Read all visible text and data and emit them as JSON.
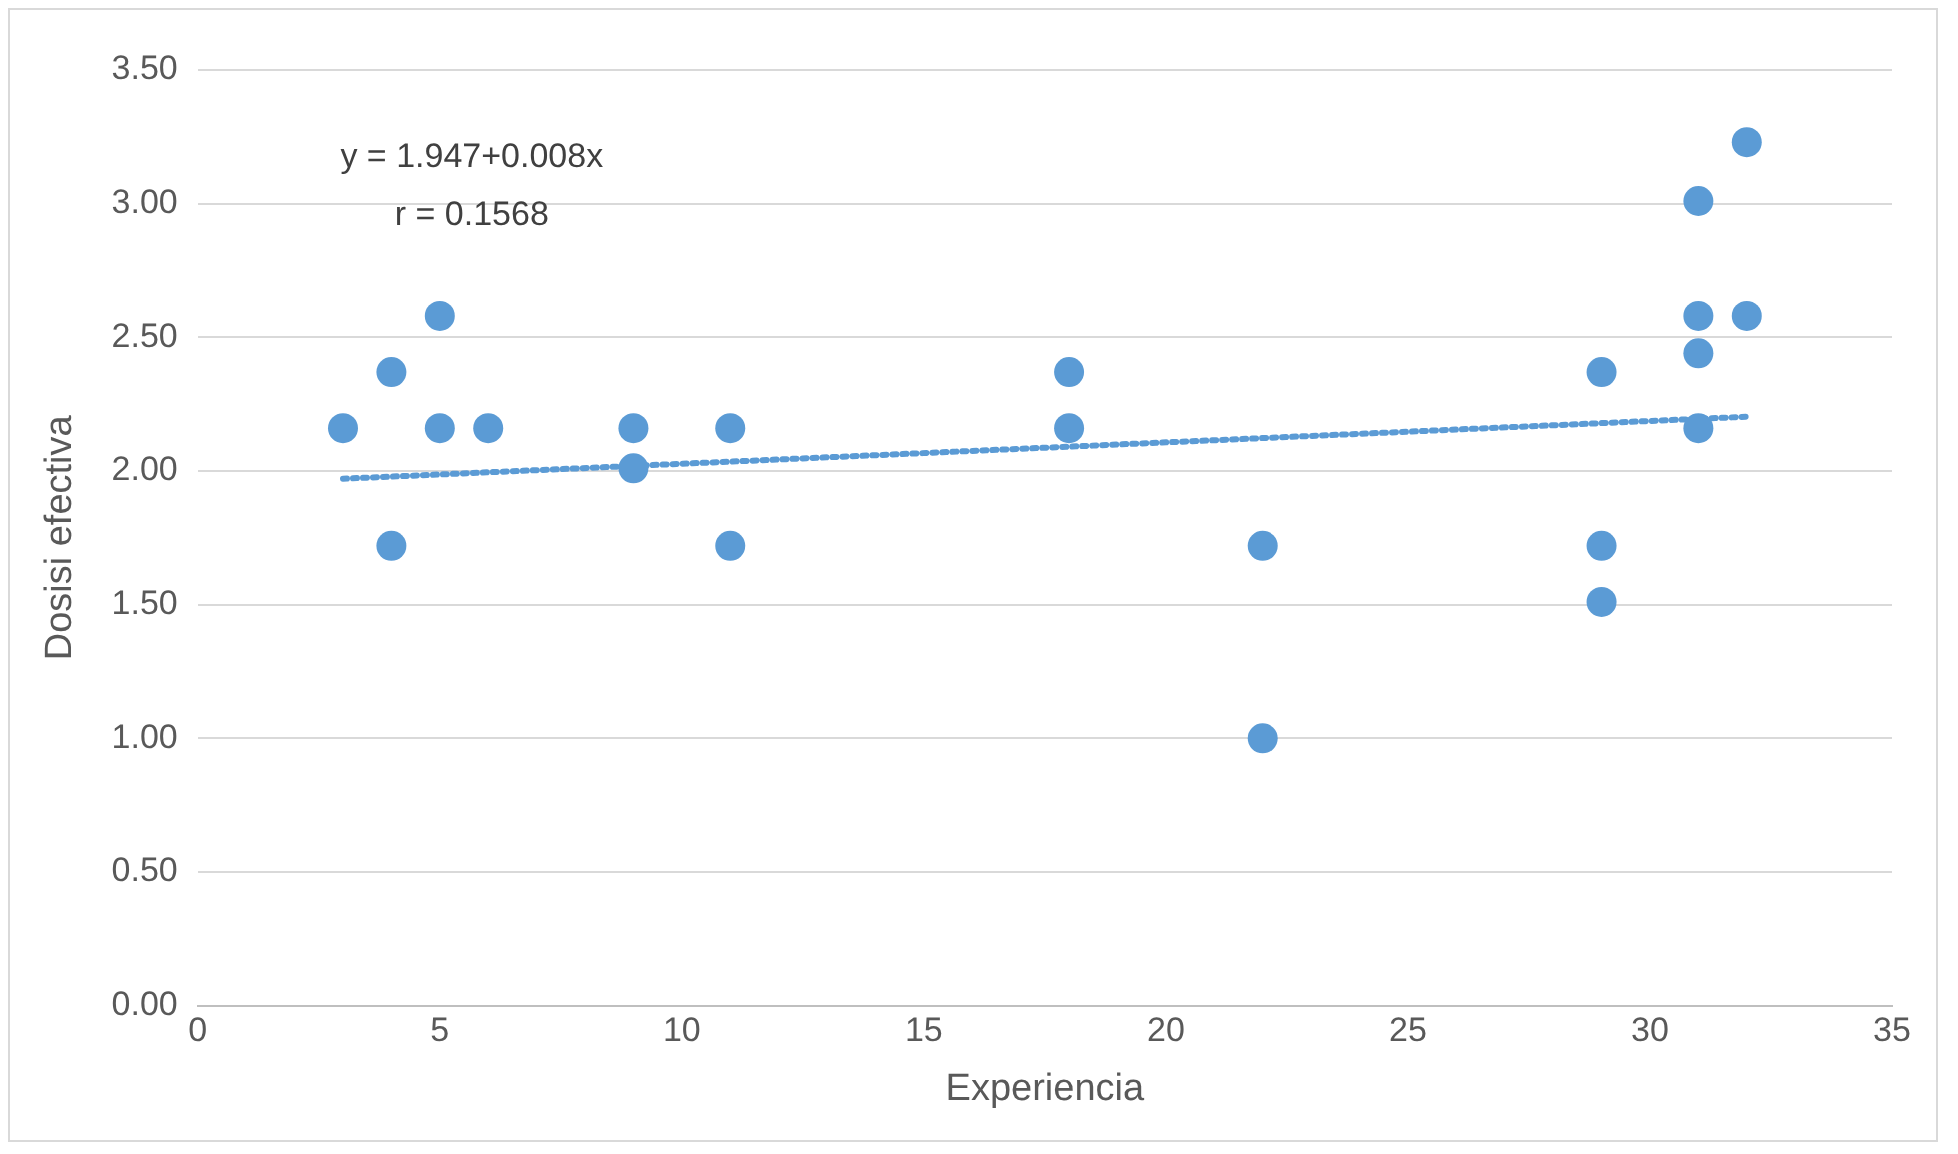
{
  "chart_data": {
    "type": "scatter",
    "xlabel": "Experiencia",
    "ylabel": "Dosisi efectiva",
    "annotations": [
      "y = 1.947+0.008x",
      "r = 0.1568"
    ],
    "xlim": [
      0,
      35
    ],
    "xticks": [
      0,
      5,
      10,
      15,
      20,
      25,
      30,
      35
    ],
    "ylim": [
      0,
      3.5
    ],
    "yticks": [
      {
        "value": 0,
        "label": "0.00"
      },
      {
        "value": 0.5,
        "label": "0.50"
      },
      {
        "value": 1,
        "label": "1.00"
      },
      {
        "value": 1.5,
        "label": "1.50"
      },
      {
        "value": 2,
        "label": "2.00"
      },
      {
        "value": 2.5,
        "label": "2.50"
      },
      {
        "value": 3,
        "label": "3.00"
      },
      {
        "value": 3.5,
        "label": "3.50"
      }
    ],
    "grid": "y",
    "legend": false,
    "marker": "circle",
    "series": [
      {
        "color": "#5b9bd5",
        "x": [
          3,
          4,
          4,
          5,
          5,
          6,
          9,
          9,
          11,
          11,
          18,
          18,
          22,
          22,
          29,
          29,
          29,
          31,
          31,
          31,
          31,
          32,
          32
        ],
        "values": [
          2.16,
          2.37,
          1.72,
          2.58,
          2.16,
          2.16,
          2.16,
          2.01,
          2.16,
          1.72,
          2.37,
          2.16,
          1.72,
          1.0,
          2.37,
          1.72,
          1.51,
          3.01,
          2.58,
          2.44,
          2.16,
          3.23,
          2.58
        ]
      },
      {
        "type": "line",
        "color": "#5b9bd5",
        "line_style": "dotted",
        "marker": "none",
        "x": [
          3,
          32
        ],
        "values": [
          1.971,
          2.203
        ]
      }
    ]
  }
}
